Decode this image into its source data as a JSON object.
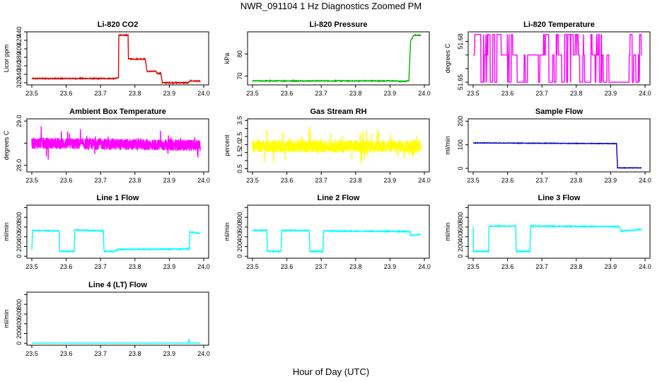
{
  "title": "NWR_091104  1 Hz Diagnostics Zoomed PM",
  "xlabel": "Hour of Day (UTC)",
  "chart_data": [
    {
      "type": "line",
      "title": "Li-820 CO2",
      "ylabel": "Licor ppm",
      "color": "#e00000",
      "ylim": [
        315,
        440
      ],
      "yticks": [
        320,
        340,
        360,
        380,
        400,
        420,
        440
      ],
      "xlim": [
        23.5,
        24.0
      ],
      "xticks": [
        "23.5",
        "23.6",
        "23.7",
        "23.8",
        "23.9",
        "24.0"
      ],
      "x": [
        23.5,
        23.74,
        23.745,
        23.752,
        23.753,
        23.78,
        23.781,
        23.82,
        23.821,
        23.83,
        23.835,
        23.86,
        23.865,
        23.875,
        23.88,
        23.955,
        23.96,
        23.97,
        23.99
      ],
      "y": [
        330,
        330,
        330,
        332,
        432,
        432,
        376,
        376,
        376,
        376,
        347,
        347,
        342,
        342,
        320,
        320,
        325,
        324,
        324
      ],
      "noise": 1.2
    },
    {
      "type": "line",
      "title": "Li-820 Pressure",
      "ylabel": "kPa",
      "color": "#00b400",
      "ylim": [
        66,
        90
      ],
      "yticks": [
        70,
        80
      ],
      "xlim": [
        23.5,
        24.0
      ],
      "xticks": [
        "23.5",
        "23.6",
        "23.7",
        "23.8",
        "23.9",
        "24.0"
      ],
      "x": [
        23.5,
        23.92,
        23.93,
        23.945,
        23.955,
        23.96,
        23.97,
        23.99
      ],
      "y": [
        67.8,
        67.8,
        67.6,
        67.6,
        68,
        86,
        88.5,
        88.5
      ],
      "noise": 0.2
    },
    {
      "type": "binary",
      "title": "Li-820 Temperature",
      "ylabel": "degrees C",
      "color": "#ff00ff",
      "ylim": [
        51.648,
        51.687
      ],
      "yticks": [
        51.65,
        51.66,
        51.67,
        51.68
      ],
      "ytickLabels": [
        "51.65",
        "",
        "",
        "51.68"
      ],
      "xlim": [
        23.5,
        24.0
      ],
      "xticks": [
        "23.5",
        "23.6",
        "23.7",
        "23.8",
        "23.9",
        "24.0"
      ],
      "levels": [
        51.65,
        51.67,
        51.685
      ],
      "base": 51.67,
      "x": [
        23.5,
        23.99
      ],
      "y": [
        51.67,
        51.67
      ]
    },
    {
      "type": "noise",
      "title": "Ambient Box Temperature",
      "ylabel": "degrees C",
      "color": "#ff00ff",
      "ylim": [
        27.85,
        29.05
      ],
      "yticks": [
        28.0,
        28.5,
        29.0
      ],
      "ytickLabels": [
        "28.0",
        "",
        "29.0"
      ],
      "xlim": [
        23.5,
        24.0
      ],
      "xticks": [
        "23.5",
        "23.6",
        "23.7",
        "23.8",
        "23.9",
        "24.0"
      ],
      "x": [
        23.5,
        23.99
      ],
      "y": [
        28.5,
        28.45
      ],
      "noise": 0.13
    },
    {
      "type": "noise",
      "title": "Gas Stream RH",
      "ylabel": "percent",
      "color": "#ffff00",
      "ylim": [
        0.3,
        3.6
      ],
      "yticks": [
        0.5,
        1.0,
        1.5,
        2.0,
        2.5,
        3.0,
        3.5
      ],
      "ytickLabels": [
        "0.5",
        "",
        "1.5",
        "2.0",
        "2.5",
        "",
        "3.5"
      ],
      "xlim": [
        23.5,
        24.0
      ],
      "xticks": [
        "23.5",
        "23.6",
        "23.7",
        "23.8",
        "23.9",
        "24.0"
      ],
      "x": [
        23.5,
        23.99
      ],
      "y": [
        1.9,
        1.9
      ],
      "noise": 0.4
    },
    {
      "type": "line",
      "title": "Sample Flow",
      "ylabel": "ml/min",
      "color": "#0000c8",
      "ylim": [
        -15,
        210
      ],
      "yticks": [
        0,
        100,
        200
      ],
      "xlim": [
        23.5,
        24.0
      ],
      "xticks": [
        "23.5",
        "23.6",
        "23.7",
        "23.8",
        "23.9",
        "24.0"
      ],
      "x": [
        23.5,
        23.915,
        23.917,
        23.92,
        23.99
      ],
      "y": [
        108,
        105,
        105,
        2,
        2
      ],
      "noise": 1.2
    },
    {
      "type": "line",
      "title": "Line 1 Flow",
      "ylabel": "ml/min",
      "color": "#00ffff",
      "ylim": [
        -40,
        1050
      ],
      "yticks": [
        0,
        200,
        400,
        600,
        800,
        1000
      ],
      "ytickLabels": [
        "0",
        "200",
        "400",
        "600",
        "800",
        ""
      ],
      "xlim": [
        23.5,
        24.0
      ],
      "xticks": [
        "23.5",
        "23.6",
        "23.7",
        "23.8",
        "23.9",
        "24.0"
      ],
      "x": [
        23.5,
        23.502,
        23.58,
        23.581,
        23.623,
        23.625,
        23.708,
        23.71,
        23.74,
        23.75,
        23.958,
        23.96,
        23.99
      ],
      "y": [
        130,
        530,
        520,
        100,
        100,
        540,
        520,
        100,
        100,
        140,
        150,
        500,
        470
      ],
      "noise": 10
    },
    {
      "type": "line",
      "title": "Line 2 Flow",
      "ylabel": "ml/min",
      "color": "#00ffff",
      "ylim": [
        -40,
        1050
      ],
      "yticks": [
        0,
        200,
        400,
        600,
        800,
        1000
      ],
      "ytickLabels": [
        "0",
        "200",
        "400",
        "600",
        "800",
        ""
      ],
      "xlim": [
        23.5,
        24.0
      ],
      "xticks": [
        "23.5",
        "23.6",
        "23.7",
        "23.8",
        "23.9",
        "24.0"
      ],
      "x": [
        23.5,
        23.542,
        23.543,
        23.583,
        23.585,
        23.665,
        23.667,
        23.705,
        23.707,
        23.958,
        23.96,
        23.99
      ],
      "y": [
        530,
        530,
        100,
        100,
        530,
        530,
        100,
        100,
        520,
        510,
        430,
        450
      ],
      "noise": 10
    },
    {
      "type": "line",
      "title": "Line 3 Flow",
      "ylabel": "ml/min",
      "color": "#00ffff",
      "ylim": [
        -40,
        1050
      ],
      "yticks": [
        0,
        200,
        400,
        600,
        800,
        1000
      ],
      "ytickLabels": [
        "0",
        "200",
        "400",
        "600",
        "800",
        ""
      ],
      "xlim": [
        23.5,
        24.0
      ],
      "xticks": [
        "23.5",
        "23.6",
        "23.7",
        "23.8",
        "23.9",
        "24.0"
      ],
      "x": [
        23.5,
        23.501,
        23.545,
        23.546,
        23.624,
        23.625,
        23.665,
        23.667,
        23.925,
        23.93,
        23.99
      ],
      "y": [
        600,
        100,
        100,
        620,
        620,
        100,
        100,
        620,
        610,
        520,
        550
      ],
      "noise": 10
    },
    {
      "type": "line",
      "title": "Line 4 (LT) Flow",
      "ylabel": "ml/min",
      "color": "#00ffff",
      "ylim": [
        -40,
        1050
      ],
      "yticks": [
        0,
        200,
        400,
        600,
        800,
        1000
      ],
      "ytickLabels": [
        "0",
        "200",
        "400",
        "600",
        "800",
        ""
      ],
      "xlim": [
        23.5,
        24.0
      ],
      "xticks": [
        "23.5",
        "23.6",
        "23.7",
        "23.8",
        "23.9",
        "24.0"
      ],
      "x": [
        23.5,
        23.955,
        23.957,
        23.959,
        23.962,
        23.99
      ],
      "y": [
        5,
        5,
        80,
        5,
        5,
        5
      ],
      "noise": 2
    }
  ]
}
